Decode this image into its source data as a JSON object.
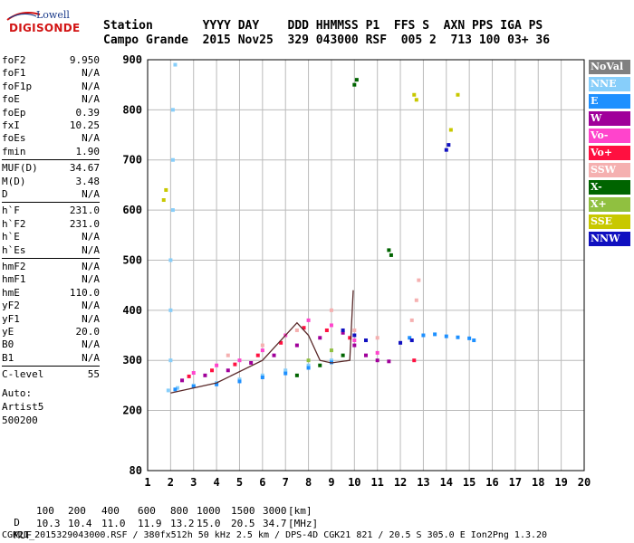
{
  "logo": {
    "line1": "Lowell",
    "line2": "DIGISONDE"
  },
  "header": {
    "labels": "Station       YYYY DAY    DDD HHMMSS P1  FFS S  AXN PPS IGA PS",
    "values": "Campo Grande  2015 Nov25  329 043000 RSF  005 2  713 100 03+ 36"
  },
  "params": [
    {
      "label": "foF2",
      "value": "9.950"
    },
    {
      "label": "foF1",
      "value": "N/A"
    },
    {
      "label": "foF1p",
      "value": "N/A"
    },
    {
      "label": "foE",
      "value": "N/A"
    },
    {
      "label": "foEp",
      "value": "0.39"
    },
    {
      "label": "fxI",
      "value": "10.25"
    },
    {
      "label": "foEs",
      "value": "N/A"
    },
    {
      "label": "fmin",
      "value": "1.90"
    },
    {
      "label": "MUF(D)",
      "value": "34.67"
    },
    {
      "label": "M(D)",
      "value": "3.48"
    },
    {
      "label": "D",
      "value": "N/A"
    },
    {
      "label": "h`F",
      "value": "231.0"
    },
    {
      "label": "h`F2",
      "value": "231.0"
    },
    {
      "label": "h`E",
      "value": "N/A"
    },
    {
      "label": "h`Es",
      "value": "N/A"
    },
    {
      "label": "hmF2",
      "value": "N/A"
    },
    {
      "label": "hmF1",
      "value": "N/A"
    },
    {
      "label": "hmE",
      "value": "110.0"
    },
    {
      "label": "yF2",
      "value": "N/A"
    },
    {
      "label": "yF1",
      "value": "N/A"
    },
    {
      "label": "yE",
      "value": "20.0"
    },
    {
      "label": "B0",
      "value": "N/A"
    },
    {
      "label": "B1",
      "value": "N/A"
    },
    {
      "label": "C-level",
      "value": "55"
    }
  ],
  "auto": {
    "l1": "Auto:",
    "l2": "Artist5",
    "l3": "500200"
  },
  "legend": [
    {
      "label": "NoVal",
      "color": "#808080"
    },
    {
      "label": "NNE",
      "color": "#87cefa"
    },
    {
      "label": "E",
      "color": "#1e90ff"
    },
    {
      "label": "W",
      "color": "#a0009a"
    },
    {
      "label": "Vo-",
      "color": "#ff44cc"
    },
    {
      "label": "Vo+",
      "color": "#ff1040"
    },
    {
      "label": "SSW",
      "color": "#f5b0b0"
    },
    {
      "label": "X-",
      "color": "#006400"
    },
    {
      "label": "X+",
      "color": "#90c040"
    },
    {
      "label": "SSE",
      "color": "#c8c800"
    },
    {
      "label": "NNW",
      "color": "#1010c0"
    }
  ],
  "footer": {
    "row1_label": "D",
    "row1_values": [
      "100",
      "200",
      "400",
      "600",
      "800",
      "1000",
      "1500",
      "3000",
      "[km]"
    ],
    "row2_label": "MUF",
    "row2_values": [
      "10.3",
      "10.4",
      "11.0",
      "11.9",
      "13.2",
      "15.0",
      "20.5",
      "34.7",
      "[MHz]"
    ],
    "info": "CGK21_2015329043000.RSF / 380fx512h 50 kHz 2.5 km / DPS-4D CGK21 821 / 20.5 S 305.0 E Ion2Png 1.3.20"
  },
  "chart_data": {
    "type": "scatter",
    "title": "",
    "xlabel": "",
    "ylabel": "",
    "xlim": [
      1,
      20
    ],
    "ylim": [
      80,
      900
    ],
    "xticks": [
      1,
      2,
      3,
      4,
      5,
      6,
      7,
      8,
      9,
      10,
      11,
      12,
      13,
      14,
      15,
      16,
      17,
      18,
      19,
      20
    ],
    "yticks": [
      80,
      200,
      300,
      400,
      500,
      600,
      700,
      800,
      900
    ],
    "grid": true,
    "legend_position": "right",
    "series": [
      {
        "name": "NNE",
        "color": "#87cefa",
        "points": [
          [
            1.9,
            240
          ],
          [
            2.0,
            300
          ],
          [
            2.0,
            400
          ],
          [
            2.0,
            500
          ],
          [
            2.1,
            600
          ],
          [
            2.1,
            700
          ],
          [
            2.1,
            800
          ],
          [
            2.2,
            890
          ],
          [
            2.3,
            245
          ],
          [
            3.0,
            250
          ],
          [
            4.0,
            255
          ],
          [
            5.0,
            262
          ],
          [
            6.0,
            270
          ],
          [
            7.0,
            280
          ],
          [
            8.0,
            290
          ],
          [
            9.0,
            300
          ]
        ]
      },
      {
        "name": "E",
        "color": "#1e90ff",
        "points": [
          [
            2.2,
            242
          ],
          [
            3.0,
            248
          ],
          [
            4.0,
            252
          ],
          [
            5.0,
            258
          ],
          [
            6.0,
            266
          ],
          [
            7.0,
            274
          ],
          [
            8.0,
            285
          ],
          [
            9.0,
            296
          ],
          [
            12.4,
            345
          ],
          [
            13.0,
            350
          ],
          [
            13.5,
            352
          ],
          [
            14.0,
            348
          ],
          [
            14.5,
            346
          ],
          [
            15.0,
            344
          ],
          [
            15.2,
            340
          ]
        ]
      },
      {
        "name": "W",
        "color": "#a0009a",
        "points": [
          [
            2.5,
            260
          ],
          [
            3.5,
            270
          ],
          [
            4.5,
            280
          ],
          [
            5.5,
            295
          ],
          [
            6.5,
            310
          ],
          [
            7.5,
            330
          ],
          [
            8.5,
            345
          ],
          [
            9.5,
            355
          ],
          [
            10.0,
            330
          ],
          [
            10.5,
            310
          ],
          [
            11.0,
            300
          ],
          [
            11.5,
            298
          ]
        ]
      },
      {
        "name": "Vo-",
        "color": "#ff44cc",
        "points": [
          [
            3.0,
            275
          ],
          [
            4.0,
            290
          ],
          [
            5.0,
            300
          ],
          [
            6.0,
            320
          ],
          [
            7.0,
            350
          ],
          [
            8.0,
            380
          ],
          [
            9.0,
            370
          ],
          [
            10.0,
            340
          ],
          [
            11.0,
            315
          ]
        ]
      },
      {
        "name": "Vo+",
        "color": "#ff1040",
        "points": [
          [
            2.8,
            268
          ],
          [
            3.8,
            280
          ],
          [
            4.8,
            292
          ],
          [
            5.8,
            310
          ],
          [
            6.8,
            335
          ],
          [
            7.8,
            365
          ],
          [
            8.8,
            360
          ],
          [
            9.8,
            345
          ],
          [
            12.6,
            300
          ]
        ]
      },
      {
        "name": "SSW",
        "color": "#f5b0b0",
        "points": [
          [
            4.5,
            310
          ],
          [
            6.0,
            330
          ],
          [
            7.5,
            360
          ],
          [
            9.0,
            400
          ],
          [
            10.0,
            360
          ],
          [
            11.0,
            345
          ],
          [
            12.5,
            380
          ],
          [
            12.7,
            420
          ],
          [
            12.8,
            460
          ]
        ]
      },
      {
        "name": "X-",
        "color": "#006400",
        "points": [
          [
            7.5,
            270
          ],
          [
            8.5,
            290
          ],
          [
            9.5,
            310
          ],
          [
            10.0,
            850
          ],
          [
            10.1,
            860
          ],
          [
            11.5,
            520
          ],
          [
            11.6,
            510
          ]
        ]
      },
      {
        "name": "X+",
        "color": "#90c040",
        "points": [
          [
            8.0,
            300
          ],
          [
            9.0,
            320
          ]
        ]
      },
      {
        "name": "SSE",
        "color": "#c8c800",
        "points": [
          [
            1.7,
            620
          ],
          [
            1.8,
            640
          ],
          [
            12.6,
            830
          ],
          [
            12.7,
            820
          ],
          [
            14.2,
            760
          ],
          [
            14.5,
            830
          ]
        ]
      },
      {
        "name": "NNW",
        "color": "#1010c0",
        "points": [
          [
            9.5,
            360
          ],
          [
            10.0,
            350
          ],
          [
            10.5,
            340
          ],
          [
            14.0,
            720
          ],
          [
            14.1,
            730
          ],
          [
            12.5,
            340
          ],
          [
            12.0,
            335
          ]
        ]
      }
    ],
    "trace": [
      [
        2.0,
        235
      ],
      [
        4.0,
        255
      ],
      [
        6.0,
        300
      ],
      [
        7.5,
        375
      ],
      [
        8.0,
        350
      ],
      [
        8.5,
        300
      ],
      [
        9.0,
        295
      ],
      [
        9.8,
        300
      ],
      [
        9.95,
        440
      ]
    ]
  }
}
